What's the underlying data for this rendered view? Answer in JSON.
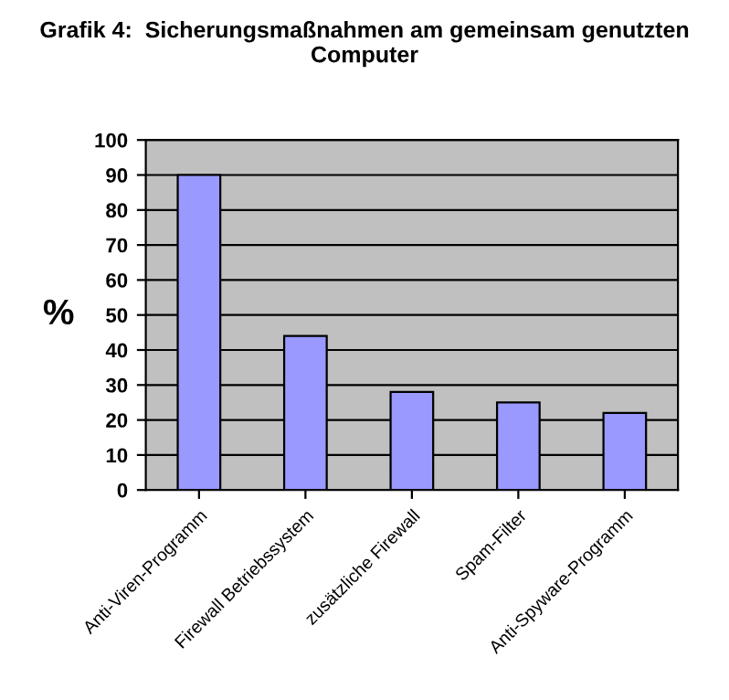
{
  "chart_data": {
    "type": "bar",
    "title": "Grafik 4:  Sicherungsmaßnahmen am gemeinsam genutzten Computer",
    "ylabel": "%",
    "categories": [
      "Anti-Viren-Programm",
      "Firewall Betriebssystem",
      "zusätzliche Firewall",
      "Spam-Filter",
      "Anti-Spyware-Programm"
    ],
    "values": [
      90,
      44,
      28,
      25,
      22
    ],
    "color": "#9999ff",
    "ylim": [
      0,
      100
    ],
    "yticks": [
      0,
      10,
      20,
      30,
      40,
      50,
      60,
      70,
      80,
      90,
      100
    ],
    "grid": "y",
    "legend": false
  }
}
